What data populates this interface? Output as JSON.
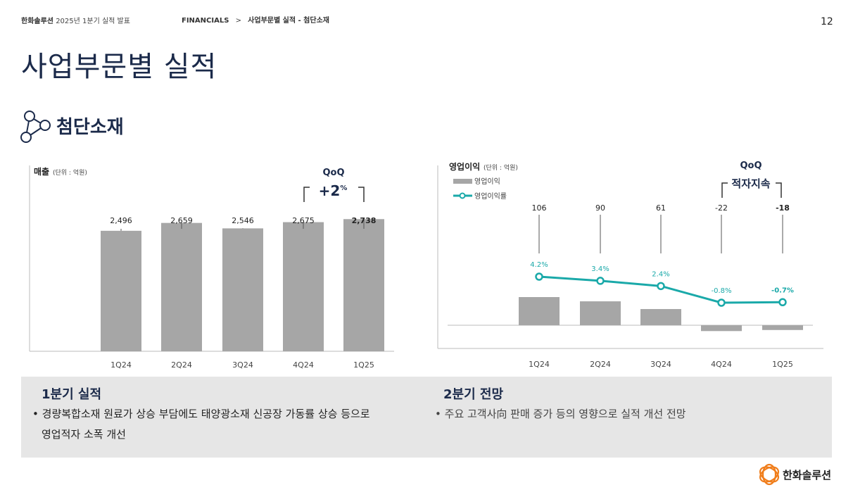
{
  "header": {
    "company": "한화솔루션",
    "report": "2025년 1분기 실적 발표",
    "breadcrumb_section": "FINANCIALS",
    "breadcrumb_sep": ">",
    "breadcrumb_page": "사업부문별 실적 - 첨단소재",
    "page_number": "12"
  },
  "title": "사업부문별 실적",
  "section": {
    "title": "첨단소재",
    "icon": "molecule-icon"
  },
  "chart_data": [
    {
      "type": "bar",
      "title": "매출",
      "unit_label": "(단위 : 억원)",
      "categories": [
        "1Q24",
        "2Q24",
        "3Q24",
        "4Q24",
        "1Q25"
      ],
      "values": [
        2496,
        2659,
        2546,
        2675,
        2738
      ],
      "value_labels": [
        "2,496",
        "2,659",
        "2,546",
        "2,675",
        "2,738"
      ],
      "ylim": [
        0,
        3500
      ],
      "bar_color": "#a6a6a6",
      "qoq_label": "QoQ",
      "qoq_value": "+2",
      "qoq_unit": "%"
    },
    {
      "type": "bar+line",
      "title": "영업이익",
      "unit_label": "(단위 : 억원)",
      "categories": [
        "1Q24",
        "2Q24",
        "3Q24",
        "4Q24",
        "1Q25"
      ],
      "series": [
        {
          "name": "영업이익",
          "values": [
            106,
            90,
            61,
            -22,
            -18
          ],
          "value_labels": [
            "106",
            "90",
            "61",
            "-22",
            "-18"
          ],
          "color": "#a6a6a6"
        },
        {
          "name": "영업이익률",
          "values": [
            4.2,
            3.4,
            2.4,
            -0.8,
            -0.7
          ],
          "value_labels": [
            "4.2%",
            "3.4%",
            "2.4%",
            "-0.8%",
            "-0.7%"
          ],
          "color": "#1aa9a9"
        }
      ],
      "qoq_label": "QoQ",
      "qoq_value": "적자지속"
    }
  ],
  "summary": {
    "q1": {
      "title": "1분기 실적",
      "bullet": "•",
      "line1": "경량복합소재  원료가 상승 부담에도 태양광소재 신공장 가동률 상승 등으로",
      "line2": "영업적자 소폭 개선"
    },
    "q2": {
      "title": "2분기 전망",
      "bullet": "•",
      "line1": "주요 고객사向 판매 증가 등의 영향으로 실적 개선 전망"
    }
  },
  "footer": {
    "logo_text": "한화솔루션"
  },
  "colors": {
    "navy": "#1b2a4a",
    "teal": "#1aa9a9",
    "bar": "#a6a6a6",
    "logo_orange": "#f07d1a"
  }
}
